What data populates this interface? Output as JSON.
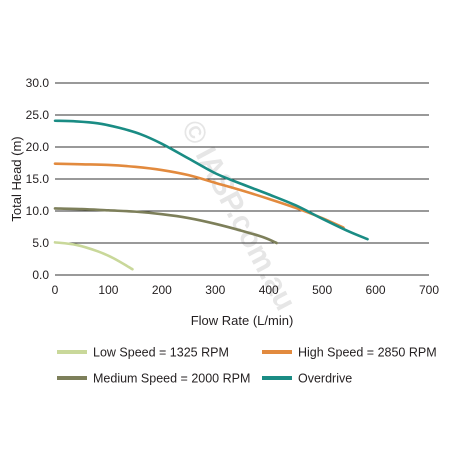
{
  "chart_data": {
    "type": "line",
    "title": "",
    "xlabel": "Flow Rate (L/min)",
    "ylabel": "Total Head (m)",
    "xlim": [
      0,
      700
    ],
    "ylim": [
      0,
      30
    ],
    "x_ticks": [
      "0",
      "100",
      "200",
      "300",
      "400",
      "500",
      "600",
      "700"
    ],
    "y_ticks": [
      "0.0",
      "5.0",
      "10.0",
      "15.0",
      "20.0",
      "25.0",
      "30.0"
    ],
    "grid": "horizontal",
    "legend_position": "bottom",
    "watermark": "© IASP.com.au",
    "series": [
      {
        "name": "Low Speed = 1325 RPM",
        "color": "#c9d89a",
        "x": [
          0,
          40,
          80,
          110,
          145
        ],
        "y": [
          5.1,
          4.7,
          3.7,
          2.6,
          0.9
        ]
      },
      {
        "name": "Medium Speed = 2000 RPM",
        "color": "#7d7f5a",
        "x": [
          0,
          50,
          100,
          150,
          200,
          250,
          300,
          350,
          390,
          415
        ],
        "y": [
          10.4,
          10.3,
          10.1,
          9.9,
          9.5,
          8.9,
          8.0,
          6.9,
          5.9,
          5.0
        ]
      },
      {
        "name": "High Speed = 2850 RPM",
        "color": "#e28a3e",
        "x": [
          0,
          50,
          100,
          150,
          200,
          250,
          300,
          350,
          400,
          450,
          500,
          540
        ],
        "y": [
          17.4,
          17.3,
          17.2,
          16.9,
          16.4,
          15.6,
          14.4,
          13.2,
          11.9,
          10.5,
          8.9,
          7.4
        ]
      },
      {
        "name": "Overdrive",
        "color": "#1a8c84",
        "x": [
          0,
          40,
          80,
          120,
          160,
          200,
          250,
          300,
          350,
          400,
          450,
          500,
          550,
          585
        ],
        "y": [
          24.1,
          24.0,
          23.7,
          23.0,
          22.0,
          20.5,
          18.2,
          15.9,
          14.2,
          12.6,
          10.9,
          8.8,
          6.8,
          5.6
        ]
      }
    ]
  }
}
